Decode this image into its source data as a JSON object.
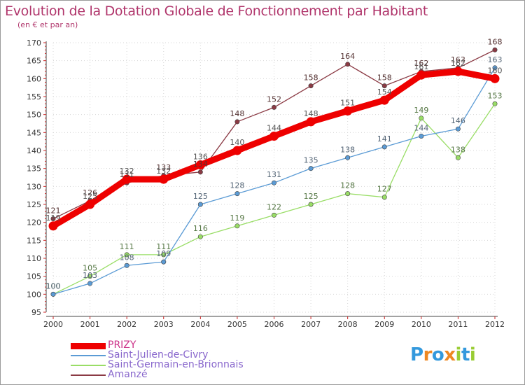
{
  "chart_data": {
    "type": "line",
    "title": "Evolution de la Dotation Globale de Fonctionnement par Habitant",
    "subtitle": "(en € et par an)",
    "x": [
      2000,
      2001,
      2002,
      2003,
      2004,
      2005,
      2006,
      2007,
      2008,
      2009,
      2010,
      2011,
      2012
    ],
    "ylim": [
      95,
      170
    ],
    "yticks": [
      95,
      100,
      105,
      110,
      115,
      120,
      125,
      130,
      135,
      140,
      145,
      150,
      155,
      160,
      165,
      170
    ],
    "xlabel": "",
    "ylabel": "",
    "grid": "dotted",
    "series": [
      {
        "name": "PRIZY",
        "color": "#ee0000",
        "values": [
          119,
          125,
          132,
          132,
          136,
          140,
          144,
          148,
          151,
          154,
          161,
          162,
          160
        ]
      },
      {
        "name": "Saint-Julien-de-Civry",
        "color": "#5b9bd5",
        "values": [
          100,
          103,
          108,
          109,
          125,
          128,
          131,
          135,
          138,
          141,
          144,
          146,
          163
        ]
      },
      {
        "name": "Saint-Germain-en-Brionnais",
        "color": "#99dd66",
        "values": [
          100,
          105,
          111,
          111,
          116,
          119,
          122,
          125,
          128,
          127,
          149,
          138,
          153
        ]
      },
      {
        "name": "Amanzé",
        "color": "#8b3a44",
        "values": [
          121,
          126,
          131,
          133,
          134,
          148,
          152,
          158,
          164,
          158,
          162,
          163,
          168
        ]
      }
    ]
  },
  "logo": {
    "text": "Proxiti",
    "letters": [
      "P",
      "r",
      "o",
      "x",
      "i",
      "t",
      "i"
    ],
    "colors": [
      "#3399dd",
      "#ee8822",
      "#3399dd",
      "#ee8822",
      "#99cc33",
      "#3399dd",
      "#99cc33"
    ]
  }
}
